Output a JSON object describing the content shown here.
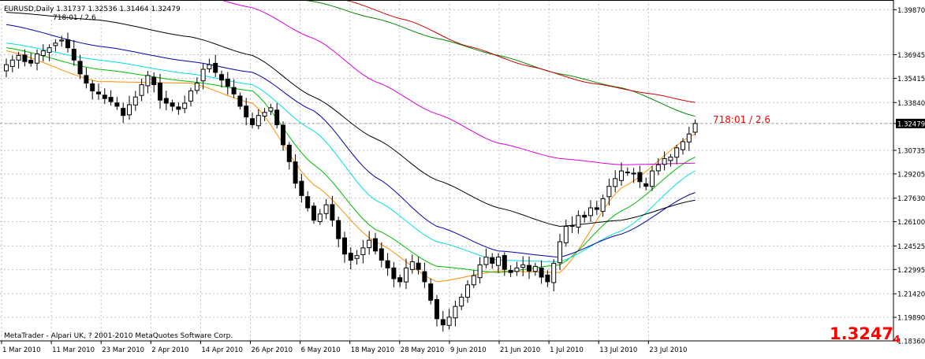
{
  "header": {
    "symbol_line": "EURUSD,Daily  1.31737 1.32536 1.31464 1.32479",
    "sub_line": "718:01 / 2.6"
  },
  "annotation": {
    "text": "718:01 / 2.6",
    "color": "#ff0000"
  },
  "copyright": "MetaTrader - Alpari UK, ? 2001-2010 MetaQuotes Software Corp.",
  "current_price": {
    "main": "1.3247",
    "sub": "4",
    "axis_label": "1.3247",
    "color": "#ff0000"
  },
  "chart_data": {
    "type": "candlestick",
    "symbol": "EURUSD",
    "timeframe": "Daily",
    "ylim": [
      1.1836,
      1.405
    ],
    "y_ticks": [
      "1.39870",
      "1.36945",
      "1.35415",
      "1.33840",
      "1.32479",
      "1.30735",
      "1.29205",
      "1.27630",
      "1.26100",
      "1.24525",
      "1.22995",
      "1.21420",
      "1.19890",
      "1.18360"
    ],
    "x_ticks": [
      "1 Mar 2010",
      "11 Mar 2010",
      "23 Mar 2010",
      "2 Apr 2010",
      "14 Apr 2010",
      "26 Apr 2010",
      "6 May 2010",
      "18 May 2010",
      "28 May 2010",
      "9 Jun 2010",
      "21 Jun 2010",
      "1 Jul 2010",
      "13 Jul 2010",
      "23 Jul 2010"
    ],
    "grid": true,
    "close_series": [
      1.363,
      1.366,
      1.369,
      1.365,
      1.364,
      1.37,
      1.372,
      1.374,
      1.377,
      1.379,
      1.374,
      1.366,
      1.357,
      1.351,
      1.346,
      1.344,
      1.341,
      1.339,
      1.336,
      1.33,
      1.337,
      1.342,
      1.35,
      1.356,
      1.35,
      1.34,
      1.338,
      1.336,
      1.334,
      1.338,
      1.346,
      1.351,
      1.36,
      1.363,
      1.358,
      1.353,
      1.349,
      1.344,
      1.336,
      1.329,
      1.324,
      1.33,
      1.332,
      1.335,
      1.324,
      1.311,
      1.3,
      1.286,
      1.278,
      1.27,
      1.262,
      1.266,
      1.272,
      1.262,
      1.25,
      1.24,
      1.236,
      1.239,
      1.244,
      1.249,
      1.242,
      1.236,
      1.231,
      1.224,
      1.222,
      1.231,
      1.235,
      1.23,
      1.222,
      1.21,
      1.198,
      1.194,
      1.199,
      1.206,
      1.212,
      1.22,
      1.226,
      1.233,
      1.238,
      1.234,
      1.238,
      1.23,
      1.228,
      1.231,
      1.233,
      1.229,
      1.232,
      1.225,
      1.222,
      1.234,
      1.248,
      1.258,
      1.258,
      1.265,
      1.264,
      1.27,
      1.269,
      1.276,
      1.284,
      1.289,
      1.294,
      1.293,
      1.292,
      1.287,
      1.284,
      1.294,
      1.298,
      1.302,
      1.303,
      1.309,
      1.313,
      1.318,
      1.3248
    ],
    "candles_drawn": 92,
    "series": [
      {
        "name": "",
        "color": "#ff8c00",
        "anchors": [
          [
            0,
            1.372
          ],
          [
            15,
            1.352
          ],
          [
            30,
            1.351
          ],
          [
            40,
            1.338
          ],
          [
            50,
            1.285
          ],
          [
            60,
            1.248
          ],
          [
            70,
            1.222
          ],
          [
            80,
            1.229
          ],
          [
            90,
            1.228
          ],
          [
            100,
            1.283
          ],
          [
            112,
            1.318
          ]
        ]
      },
      {
        "name": "",
        "color": "#00bb00",
        "anchors": [
          [
            0,
            1.374
          ],
          [
            15,
            1.36
          ],
          [
            30,
            1.352
          ],
          [
            40,
            1.346
          ],
          [
            50,
            1.298
          ],
          [
            60,
            1.256
          ],
          [
            70,
            1.232
          ],
          [
            80,
            1.228
          ],
          [
            90,
            1.233
          ],
          [
            100,
            1.268
          ],
          [
            112,
            1.303
          ]
        ]
      },
      {
        "name": "",
        "color": "#00e0e0",
        "anchors": [
          [
            0,
            1.377
          ],
          [
            15,
            1.366
          ],
          [
            30,
            1.357
          ],
          [
            40,
            1.35
          ],
          [
            50,
            1.32
          ],
          [
            60,
            1.275
          ],
          [
            70,
            1.248
          ],
          [
            80,
            1.236
          ],
          [
            90,
            1.235
          ],
          [
            100,
            1.255
          ],
          [
            112,
            1.294
          ]
        ]
      },
      {
        "name": "",
        "color": "#0000aa",
        "anchors": [
          [
            0,
            1.389
          ],
          [
            15,
            1.375
          ],
          [
            30,
            1.365
          ],
          [
            40,
            1.358
          ],
          [
            50,
            1.333
          ],
          [
            60,
            1.29
          ],
          [
            70,
            1.258
          ],
          [
            80,
            1.242
          ],
          [
            90,
            1.238
          ],
          [
            100,
            1.253
          ],
          [
            112,
            1.28
          ]
        ]
      },
      {
        "name": "",
        "color": "#000000",
        "anchors": [
          [
            0,
            1.397
          ],
          [
            15,
            1.392
          ],
          [
            30,
            1.381
          ],
          [
            40,
            1.369
          ],
          [
            50,
            1.342
          ],
          [
            60,
            1.315
          ],
          [
            70,
            1.288
          ],
          [
            80,
            1.27
          ],
          [
            90,
            1.258
          ],
          [
            100,
            1.262
          ],
          [
            112,
            1.275
          ]
        ]
      },
      {
        "name": "",
        "color": "#dd00dd",
        "anchors": [
          [
            26,
            1.415
          ],
          [
            40,
            1.4
          ],
          [
            50,
            1.38
          ],
          [
            60,
            1.352
          ],
          [
            70,
            1.331
          ],
          [
            80,
            1.312
          ],
          [
            90,
            1.302
          ],
          [
            100,
            1.298
          ],
          [
            112,
            1.299
          ]
        ]
      },
      {
        "name": "",
        "color": "#008800",
        "anchors": [
          [
            36,
            1.415
          ],
          [
            50,
            1.404
          ],
          [
            60,
            1.393
          ],
          [
            70,
            1.38
          ],
          [
            80,
            1.369
          ],
          [
            90,
            1.357
          ],
          [
            100,
            1.348
          ],
          [
            112,
            1.3295
          ]
        ]
      },
      {
        "name": "",
        "color": "#cc0000",
        "anchors": [
          [
            45,
            1.415
          ],
          [
            55,
            1.405
          ],
          [
            65,
            1.392
          ],
          [
            75,
            1.375
          ],
          [
            85,
            1.362
          ],
          [
            95,
            1.351
          ],
          [
            105,
            1.344
          ],
          [
            112,
            1.3385
          ]
        ]
      }
    ]
  }
}
